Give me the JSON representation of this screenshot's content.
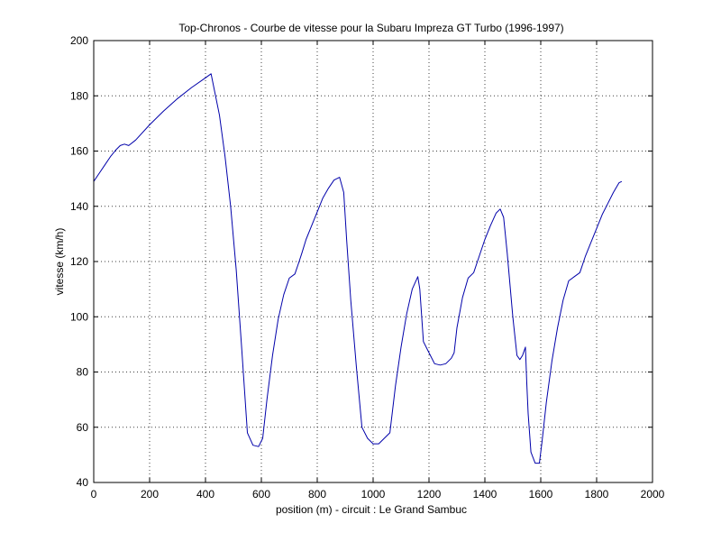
{
  "chart_data": {
    "type": "line",
    "title": "Top-Chronos - Courbe de vitesse pour la Subaru Impreza GT Turbo (1996-1997)",
    "xlabel": "position (m) - circuit : Le Grand Sambuc",
    "ylabel": "vitesse (km/h)",
    "xlim": [
      0,
      2000
    ],
    "ylim": [
      40,
      200
    ],
    "xticks": [
      0,
      200,
      400,
      600,
      800,
      1000,
      1200,
      1400,
      1600,
      1800,
      2000
    ],
    "yticks": [
      40,
      60,
      80,
      100,
      120,
      140,
      160,
      180,
      200
    ],
    "grid": true,
    "series": [
      {
        "color": "#0000aa",
        "x": [
          0,
          20,
          40,
          60,
          80,
          95,
          110,
          125,
          150,
          200,
          250,
          300,
          350,
          400,
          420,
          430,
          450,
          470,
          490,
          510,
          530,
          550,
          570,
          590,
          605,
          620,
          640,
          660,
          680,
          700,
          720,
          735,
          745,
          760,
          780,
          800,
          820,
          840,
          860,
          880,
          895,
          905,
          920,
          940,
          960,
          980,
          1000,
          1020,
          1040,
          1060,
          1080,
          1100,
          1120,
          1140,
          1160,
          1167,
          1180,
          1200,
          1220,
          1240,
          1260,
          1280,
          1290,
          1300,
          1320,
          1340,
          1360,
          1380,
          1400,
          1420,
          1440,
          1455,
          1467,
          1480,
          1500,
          1515,
          1525,
          1535,
          1545,
          1550,
          1555,
          1565,
          1580,
          1595,
          1605,
          1620,
          1640,
          1660,
          1680,
          1700,
          1720,
          1740,
          1760,
          1780,
          1800,
          1820,
          1840,
          1860,
          1880,
          1890
        ],
        "y": [
          149,
          152,
          155,
          158,
          160.5,
          162,
          162.5,
          162,
          164,
          169.5,
          174.5,
          179,
          183,
          186.5,
          188,
          183,
          173,
          158,
          140,
          117,
          88,
          58,
          53.5,
          53,
          56,
          70,
          86,
          99,
          108,
          114,
          115.5,
          120,
          123,
          128,
          133,
          138,
          143,
          146.5,
          149.5,
          150.5,
          145,
          128,
          106,
          82,
          60,
          56,
          54,
          54,
          56,
          58,
          75,
          89,
          101,
          110,
          114.5,
          110,
          91,
          87,
          83,
          82.5,
          83,
          85,
          87,
          96,
          107,
          114,
          116,
          122,
          128,
          133,
          137.5,
          139,
          136,
          123,
          100,
          86,
          84.5,
          86,
          89,
          76,
          65,
          51,
          47,
          47,
          55,
          69,
          84,
          96,
          106,
          113,
          114.5,
          116,
          122,
          127,
          132,
          137,
          141,
          145,
          148.5,
          149
        ]
      }
    ]
  }
}
